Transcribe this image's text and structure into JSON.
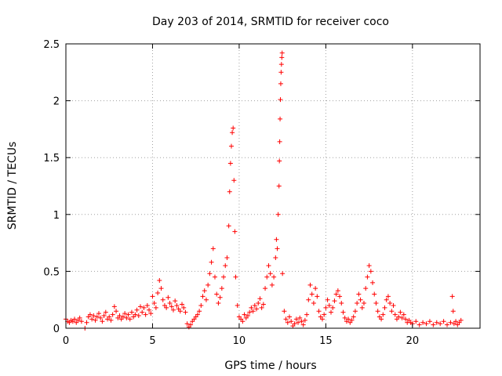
{
  "chart_data": {
    "type": "scatter",
    "title": "Day 203 of 2014, SRMTID for receiver coco",
    "xlabel": "GPS time / hours",
    "ylabel": "SRMTID / TECUs",
    "xlim": [
      0,
      23.9
    ],
    "ylim": [
      0,
      2.5
    ],
    "xticks": [
      0,
      5,
      10,
      15,
      20
    ],
    "xtick_labels": [
      "0",
      "5",
      "10",
      "15",
      "20"
    ],
    "yticks": [
      0,
      0.5,
      1,
      1.5,
      2,
      2.5
    ],
    "ytick_labels": [
      "0",
      "0.5",
      "1",
      "1.5",
      "2",
      "2.5"
    ],
    "grid": true,
    "marker": "+",
    "series": [
      {
        "name": "SRMTID",
        "color": "#ff0000",
        "points": [
          [
            0.0,
            0.08
          ],
          [
            0.1,
            0.06
          ],
          [
            0.2,
            0.05
          ],
          [
            0.3,
            0.07
          ],
          [
            0.4,
            0.06
          ],
          [
            0.5,
            0.08
          ],
          [
            0.6,
            0.05
          ],
          [
            0.7,
            0.07
          ],
          [
            0.8,
            0.09
          ],
          [
            0.9,
            0.06
          ],
          [
            1.1,
            0.0
          ],
          [
            1.2,
            0.05
          ],
          [
            1.3,
            0.1
          ],
          [
            1.4,
            0.12
          ],
          [
            1.5,
            0.08
          ],
          [
            1.6,
            0.11
          ],
          [
            1.7,
            0.07
          ],
          [
            1.8,
            0.1
          ],
          [
            1.9,
            0.13
          ],
          [
            2.0,
            0.09
          ],
          [
            2.1,
            0.06
          ],
          [
            2.2,
            0.11
          ],
          [
            2.3,
            0.14
          ],
          [
            2.4,
            0.08
          ],
          [
            2.5,
            0.1
          ],
          [
            2.6,
            0.07
          ],
          [
            2.7,
            0.12
          ],
          [
            2.8,
            0.19
          ],
          [
            2.9,
            0.15
          ],
          [
            3.0,
            0.09
          ],
          [
            3.1,
            0.11
          ],
          [
            3.2,
            0.08
          ],
          [
            3.3,
            0.1
          ],
          [
            3.4,
            0.13
          ],
          [
            3.5,
            0.09
          ],
          [
            3.6,
            0.12
          ],
          [
            3.7,
            0.08
          ],
          [
            3.8,
            0.14
          ],
          [
            3.9,
            0.1
          ],
          [
            4.0,
            0.12
          ],
          [
            4.1,
            0.16
          ],
          [
            4.2,
            0.11
          ],
          [
            4.3,
            0.19
          ],
          [
            4.4,
            0.14
          ],
          [
            4.5,
            0.18
          ],
          [
            4.6,
            0.12
          ],
          [
            4.7,
            0.2
          ],
          [
            4.8,
            0.16
          ],
          [
            4.9,
            0.13
          ],
          [
            5.0,
            0.28
          ],
          [
            5.1,
            0.22
          ],
          [
            5.2,
            0.18
          ],
          [
            5.3,
            0.31
          ],
          [
            5.4,
            0.42
          ],
          [
            5.5,
            0.35
          ],
          [
            5.6,
            0.25
          ],
          [
            5.7,
            0.2
          ],
          [
            5.8,
            0.18
          ],
          [
            5.9,
            0.27
          ],
          [
            6.0,
            0.22
          ],
          [
            6.1,
            0.19
          ],
          [
            6.2,
            0.16
          ],
          [
            6.3,
            0.24
          ],
          [
            6.4,
            0.2
          ],
          [
            6.5,
            0.17
          ],
          [
            6.6,
            0.15
          ],
          [
            6.7,
            0.21
          ],
          [
            6.8,
            0.18
          ],
          [
            6.9,
            0.14
          ],
          [
            7.0,
            0.04
          ],
          [
            7.1,
            0.01
          ],
          [
            7.2,
            0.03
          ],
          [
            7.3,
            0.06
          ],
          [
            7.4,
            0.08
          ],
          [
            7.5,
            0.1
          ],
          [
            7.6,
            0.12
          ],
          [
            7.7,
            0.15
          ],
          [
            7.8,
            0.2
          ],
          [
            7.9,
            0.28
          ],
          [
            8.0,
            0.33
          ],
          [
            8.1,
            0.25
          ],
          [
            8.2,
            0.38
          ],
          [
            8.3,
            0.48
          ],
          [
            8.4,
            0.58
          ],
          [
            8.5,
            0.7
          ],
          [
            8.6,
            0.45
          ],
          [
            8.7,
            0.3
          ],
          [
            8.8,
            0.22
          ],
          [
            8.9,
            0.27
          ],
          [
            9.0,
            0.35
          ],
          [
            9.1,
            0.45
          ],
          [
            9.2,
            0.55
          ],
          [
            9.3,
            0.62
          ],
          [
            9.4,
            0.9
          ],
          [
            9.45,
            1.2
          ],
          [
            9.5,
            1.45
          ],
          [
            9.55,
            1.6
          ],
          [
            9.6,
            1.72
          ],
          [
            9.65,
            1.76
          ],
          [
            9.7,
            1.3
          ],
          [
            9.75,
            0.85
          ],
          [
            9.8,
            0.45
          ],
          [
            9.9,
            0.2
          ],
          [
            10.0,
            0.1
          ],
          [
            10.1,
            0.08
          ],
          [
            10.2,
            0.06
          ],
          [
            10.3,
            0.12
          ],
          [
            10.4,
            0.09
          ],
          [
            10.5,
            0.11
          ],
          [
            10.6,
            0.14
          ],
          [
            10.7,
            0.18
          ],
          [
            10.8,
            0.15
          ],
          [
            10.9,
            0.2
          ],
          [
            11.0,
            0.17
          ],
          [
            11.1,
            0.22
          ],
          [
            11.2,
            0.26
          ],
          [
            11.3,
            0.18
          ],
          [
            11.4,
            0.21
          ],
          [
            11.5,
            0.35
          ],
          [
            11.6,
            0.45
          ],
          [
            11.7,
            0.55
          ],
          [
            11.8,
            0.48
          ],
          [
            11.9,
            0.38
          ],
          [
            12.0,
            0.45
          ],
          [
            12.1,
            0.62
          ],
          [
            12.15,
            0.78
          ],
          [
            12.2,
            0.7
          ],
          [
            12.25,
            1.0
          ],
          [
            12.3,
            1.25
          ],
          [
            12.32,
            1.47
          ],
          [
            12.34,
            1.64
          ],
          [
            12.36,
            1.84
          ],
          [
            12.38,
            2.01
          ],
          [
            12.4,
            2.15
          ],
          [
            12.42,
            2.25
          ],
          [
            12.44,
            2.32
          ],
          [
            12.46,
            2.38
          ],
          [
            12.48,
            2.42
          ],
          [
            12.5,
            0.48
          ],
          [
            12.6,
            0.15
          ],
          [
            12.7,
            0.08
          ],
          [
            12.8,
            0.05
          ],
          [
            12.9,
            0.1
          ],
          [
            13.0,
            0.06
          ],
          [
            13.1,
            0.02
          ],
          [
            13.2,
            0.04
          ],
          [
            13.3,
            0.08
          ],
          [
            13.4,
            0.05
          ],
          [
            13.5,
            0.09
          ],
          [
            13.6,
            0.06
          ],
          [
            13.7,
            0.03
          ],
          [
            13.8,
            0.07
          ],
          [
            13.9,
            0.12
          ],
          [
            14.0,
            0.25
          ],
          [
            14.1,
            0.38
          ],
          [
            14.2,
            0.3
          ],
          [
            14.3,
            0.22
          ],
          [
            14.4,
            0.35
          ],
          [
            14.5,
            0.28
          ],
          [
            14.6,
            0.15
          ],
          [
            14.7,
            0.1
          ],
          [
            14.8,
            0.08
          ],
          [
            14.9,
            0.12
          ],
          [
            15.0,
            0.18
          ],
          [
            15.1,
            0.25
          ],
          [
            15.2,
            0.2
          ],
          [
            15.3,
            0.14
          ],
          [
            15.4,
            0.18
          ],
          [
            15.5,
            0.24
          ],
          [
            15.6,
            0.3
          ],
          [
            15.7,
            0.33
          ],
          [
            15.8,
            0.28
          ],
          [
            15.9,
            0.22
          ],
          [
            16.0,
            0.14
          ],
          [
            16.1,
            0.09
          ],
          [
            16.2,
            0.06
          ],
          [
            16.3,
            0.08
          ],
          [
            16.4,
            0.05
          ],
          [
            16.5,
            0.07
          ],
          [
            16.6,
            0.1
          ],
          [
            16.7,
            0.15
          ],
          [
            16.8,
            0.22
          ],
          [
            16.9,
            0.3
          ],
          [
            17.0,
            0.25
          ],
          [
            17.1,
            0.18
          ],
          [
            17.2,
            0.22
          ],
          [
            17.3,
            0.35
          ],
          [
            17.4,
            0.45
          ],
          [
            17.5,
            0.55
          ],
          [
            17.6,
            0.5
          ],
          [
            17.7,
            0.4
          ],
          [
            17.8,
            0.3
          ],
          [
            17.9,
            0.22
          ],
          [
            18.0,
            0.15
          ],
          [
            18.1,
            0.1
          ],
          [
            18.2,
            0.08
          ],
          [
            18.3,
            0.12
          ],
          [
            18.4,
            0.18
          ],
          [
            18.5,
            0.25
          ],
          [
            18.6,
            0.28
          ],
          [
            18.7,
            0.22
          ],
          [
            18.8,
            0.15
          ],
          [
            18.9,
            0.2
          ],
          [
            19.0,
            0.12
          ],
          [
            19.1,
            0.08
          ],
          [
            19.2,
            0.1
          ],
          [
            19.3,
            0.14
          ],
          [
            19.4,
            0.09
          ],
          [
            19.5,
            0.12
          ],
          [
            19.6,
            0.08
          ],
          [
            19.7,
            0.05
          ],
          [
            19.8,
            0.07
          ],
          [
            19.9,
            0.05
          ],
          [
            20.0,
            0.04
          ],
          [
            20.2,
            0.06
          ],
          [
            20.4,
            0.03
          ],
          [
            20.6,
            0.05
          ],
          [
            20.8,
            0.04
          ],
          [
            21.0,
            0.06
          ],
          [
            21.2,
            0.03
          ],
          [
            21.4,
            0.05
          ],
          [
            21.6,
            0.04
          ],
          [
            21.8,
            0.06
          ],
          [
            22.0,
            0.03
          ],
          [
            22.2,
            0.05
          ],
          [
            22.3,
            0.28
          ],
          [
            22.35,
            0.15
          ],
          [
            22.4,
            0.04
          ],
          [
            22.5,
            0.06
          ],
          [
            22.6,
            0.03
          ],
          [
            22.7,
            0.05
          ],
          [
            22.8,
            0.07
          ]
        ]
      }
    ]
  }
}
